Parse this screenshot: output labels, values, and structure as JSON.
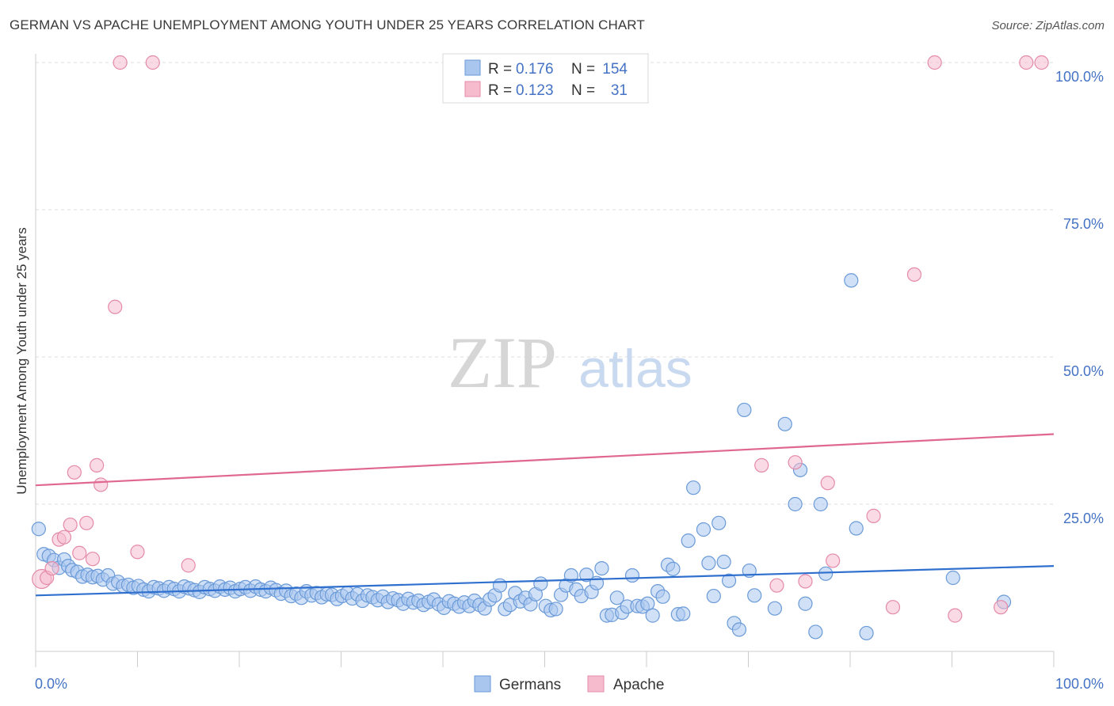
{
  "header": {
    "title": "GERMAN VS APACHE UNEMPLOYMENT AMONG YOUTH UNDER 25 YEARS CORRELATION CHART",
    "source": "Source: ZipAtlas.com"
  },
  "watermark": {
    "zip": "ZIP",
    "atlas": "atlas"
  },
  "colors": {
    "germans_fill": "#a9c7ee",
    "germans_stroke": "#6a9ad8",
    "germans_line": "#2f6fce",
    "apache_fill": "#f6bccd",
    "apache_stroke": "#e48aa8",
    "apache_line": "#e0678f",
    "grid": "#dddddd",
    "axis_label": "#4472c4"
  },
  "legend_top": {
    "rows": [
      {
        "r_label": "R =",
        "r_value": "0.176",
        "n_label": "N =",
        "n_value": "154"
      },
      {
        "r_label": "R =",
        "r_value": "0.123",
        "n_label": "N =",
        "n_value": "31"
      }
    ]
  },
  "legend_bottom": [
    "Germans",
    "Apache"
  ],
  "chart_data": {
    "type": "scatter",
    "title": "GERMAN VS APACHE UNEMPLOYMENT AMONG YOUTH UNDER 25 YEARS CORRELATION CHART",
    "xlabel": "",
    "ylabel": "Unemployment Among Youth under 25 years",
    "xlim": [
      0,
      100
    ],
    "ylim": [
      0,
      100
    ],
    "x_tick_labels": [
      "0.0%",
      "100.0%"
    ],
    "y_ticks": [
      25,
      50,
      75,
      100
    ],
    "y_tick_labels": [
      "25.0%",
      "50.0%",
      "75.0%",
      "100.0%"
    ],
    "grid": true,
    "legend": "top-center",
    "series": [
      {
        "name": "Germans",
        "trend": [
          [
            0,
            9.5
          ],
          [
            100,
            14.5
          ]
        ],
        "points": [
          [
            0.3,
            20.8
          ],
          [
            0.8,
            16.5
          ],
          [
            1.3,
            16.2
          ],
          [
            1.8,
            15.5
          ],
          [
            2.3,
            14.2
          ],
          [
            2.8,
            15.6
          ],
          [
            3.2,
            14.5
          ],
          [
            3.6,
            13.8
          ],
          [
            4.1,
            13.5
          ],
          [
            4.6,
            12.7
          ],
          [
            5.1,
            13.0
          ],
          [
            5.6,
            12.6
          ],
          [
            6.1,
            12.8
          ],
          [
            6.6,
            12.2
          ],
          [
            7.1,
            12.9
          ],
          [
            7.6,
            11.5
          ],
          [
            8.1,
            11.8
          ],
          [
            8.6,
            11.1
          ],
          [
            9.1,
            11.3
          ],
          [
            9.6,
            10.8
          ],
          [
            10.1,
            11.1
          ],
          [
            10.6,
            10.5
          ],
          [
            11.1,
            10.2
          ],
          [
            11.6,
            10.9
          ],
          [
            12.1,
            10.7
          ],
          [
            12.6,
            10.3
          ],
          [
            13.1,
            10.9
          ],
          [
            13.6,
            10.6
          ],
          [
            14.1,
            10.2
          ],
          [
            14.6,
            11.0
          ],
          [
            15.1,
            10.7
          ],
          [
            15.6,
            10.4
          ],
          [
            16.1,
            10.1
          ],
          [
            16.6,
            10.9
          ],
          [
            17.1,
            10.6
          ],
          [
            17.6,
            10.3
          ],
          [
            18.1,
            11.0
          ],
          [
            18.6,
            10.5
          ],
          [
            19.1,
            10.8
          ],
          [
            19.6,
            10.2
          ],
          [
            20.1,
            10.6
          ],
          [
            20.6,
            10.9
          ],
          [
            21.1,
            10.3
          ],
          [
            21.6,
            11.0
          ],
          [
            22.1,
            10.5
          ],
          [
            22.6,
            10.2
          ],
          [
            23.1,
            10.8
          ],
          [
            23.6,
            10.4
          ],
          [
            24.1,
            9.8
          ],
          [
            24.6,
            10.3
          ],
          [
            25.1,
            9.4
          ],
          [
            25.6,
            9.8
          ],
          [
            26.1,
            9.1
          ],
          [
            26.6,
            10.2
          ],
          [
            27.1,
            9.5
          ],
          [
            27.6,
            9.9
          ],
          [
            28.1,
            9.2
          ],
          [
            28.6,
            9.7
          ],
          [
            29.1,
            9.6
          ],
          [
            29.6,
            8.9
          ],
          [
            30.1,
            9.4
          ],
          [
            30.6,
            9.9
          ],
          [
            31.1,
            9.0
          ],
          [
            31.6,
            9.7
          ],
          [
            32.1,
            8.6
          ],
          [
            32.6,
            9.5
          ],
          [
            33.1,
            9.2
          ],
          [
            33.6,
            8.7
          ],
          [
            34.1,
            9.3
          ],
          [
            34.6,
            8.4
          ],
          [
            35.1,
            9.0
          ],
          [
            35.6,
            8.7
          ],
          [
            36.1,
            8.1
          ],
          [
            36.6,
            8.9
          ],
          [
            37.1,
            8.3
          ],
          [
            37.6,
            8.6
          ],
          [
            38.1,
            7.9
          ],
          [
            38.6,
            8.4
          ],
          [
            39.1,
            8.8
          ],
          [
            39.6,
            8.0
          ],
          [
            40.1,
            7.4
          ],
          [
            40.6,
            8.5
          ],
          [
            41.1,
            8.1
          ],
          [
            41.6,
            7.6
          ],
          [
            42.1,
            8.3
          ],
          [
            42.6,
            7.7
          ],
          [
            43.1,
            8.6
          ],
          [
            43.6,
            7.9
          ],
          [
            44.1,
            7.3
          ],
          [
            44.6,
            8.8
          ],
          [
            45.1,
            9.5
          ],
          [
            45.6,
            11.2
          ],
          [
            46.1,
            7.2
          ],
          [
            46.6,
            7.9
          ],
          [
            47.1,
            9.9
          ],
          [
            47.6,
            8.5
          ],
          [
            48.1,
            9.1
          ],
          [
            48.6,
            8.0
          ],
          [
            49.1,
            9.7
          ],
          [
            49.6,
            11.5
          ],
          [
            50.1,
            7.7
          ],
          [
            50.6,
            7.0
          ],
          [
            51.1,
            7.2
          ],
          [
            51.6,
            9.6
          ],
          [
            52.1,
            11.2
          ],
          [
            52.6,
            12.9
          ],
          [
            53.1,
            10.5
          ],
          [
            53.6,
            9.4
          ],
          [
            54.1,
            13.0
          ],
          [
            54.6,
            10.1
          ],
          [
            55.1,
            11.6
          ],
          [
            55.6,
            14.1
          ],
          [
            56.1,
            6.1
          ],
          [
            56.6,
            6.2
          ],
          [
            57.1,
            9.1
          ],
          [
            57.6,
            6.6
          ],
          [
            58.1,
            7.6
          ],
          [
            58.6,
            12.9
          ],
          [
            59.1,
            7.7
          ],
          [
            59.6,
            7.6
          ],
          [
            60.1,
            8.1
          ],
          [
            60.6,
            6.1
          ],
          [
            61.1,
            10.2
          ],
          [
            61.6,
            9.3
          ],
          [
            62.1,
            14.7
          ],
          [
            62.6,
            14.0
          ],
          [
            63.1,
            6.3
          ],
          [
            63.6,
            6.4
          ],
          [
            64.1,
            18.8
          ],
          [
            64.6,
            27.8
          ],
          [
            65.6,
            20.7
          ],
          [
            66.1,
            15.0
          ],
          [
            66.6,
            9.4
          ],
          [
            67.1,
            21.8
          ],
          [
            67.6,
            15.2
          ],
          [
            68.1,
            12.0
          ],
          [
            68.6,
            4.8
          ],
          [
            69.1,
            3.7
          ],
          [
            69.6,
            41.0
          ],
          [
            70.1,
            13.7
          ],
          [
            70.6,
            9.5
          ],
          [
            72.6,
            7.3
          ],
          [
            73.6,
            38.6
          ],
          [
            74.6,
            25.0
          ],
          [
            75.1,
            30.8
          ],
          [
            75.6,
            8.1
          ],
          [
            76.6,
            3.3
          ],
          [
            77.1,
            25.0
          ],
          [
            77.6,
            13.2
          ],
          [
            80.1,
            63.0
          ],
          [
            80.6,
            20.9
          ],
          [
            81.6,
            3.1
          ],
          [
            90.1,
            12.5
          ],
          [
            95.1,
            8.4
          ]
        ]
      },
      {
        "name": "Apache",
        "trend": [
          [
            0,
            28.2
          ],
          [
            100,
            36.9
          ]
        ],
        "points": [
          [
            0.6,
            12.3
          ],
          [
            1.1,
            12.5
          ],
          [
            1.6,
            14.1
          ],
          [
            2.3,
            19.0
          ],
          [
            2.8,
            19.4
          ],
          [
            3.4,
            21.5
          ],
          [
            3.8,
            30.4
          ],
          [
            4.3,
            16.7
          ],
          [
            5.0,
            21.8
          ],
          [
            5.6,
            15.7
          ],
          [
            6.0,
            31.6
          ],
          [
            6.4,
            28.3
          ],
          [
            7.8,
            58.5
          ],
          [
            8.3,
            100.0
          ],
          [
            10.0,
            16.9
          ],
          [
            11.5,
            100.0
          ],
          [
            15.0,
            14.6
          ],
          [
            71.3,
            31.6
          ],
          [
            72.8,
            11.2
          ],
          [
            74.6,
            32.1
          ],
          [
            75.6,
            11.9
          ],
          [
            77.8,
            28.6
          ],
          [
            78.3,
            15.4
          ],
          [
            82.3,
            23.0
          ],
          [
            84.2,
            7.5
          ],
          [
            86.3,
            64.0
          ],
          [
            88.3,
            100.0
          ],
          [
            90.3,
            6.1
          ],
          [
            94.8,
            7.5
          ],
          [
            97.3,
            100.0
          ],
          [
            98.8,
            100.0
          ]
        ]
      }
    ]
  }
}
